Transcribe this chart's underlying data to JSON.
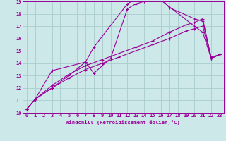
{
  "xlabel": "Windchill (Refroidissement éolien,°C)",
  "xlim": [
    -0.5,
    23.5
  ],
  "ylim": [
    10,
    19
  ],
  "yticks": [
    10,
    11,
    12,
    13,
    14,
    15,
    16,
    17,
    18,
    19
  ],
  "xticks": [
    0,
    1,
    2,
    3,
    4,
    5,
    6,
    7,
    8,
    9,
    10,
    11,
    12,
    13,
    14,
    15,
    16,
    17,
    18,
    19,
    20,
    21,
    22,
    23
  ],
  "bg_color": "#cce8e8",
  "grid_color": "#aacccc",
  "line_color": "#990099",
  "lines": [
    {
      "x": [
        0,
        1,
        3,
        7,
        8,
        12,
        13,
        14,
        15,
        16,
        17,
        20,
        21,
        22,
        23
      ],
      "y": [
        10.3,
        11.1,
        13.4,
        14.1,
        15.3,
        18.8,
        19.2,
        19.2,
        19.2,
        19.3,
        18.5,
        17.6,
        17.4,
        14.5,
        14.7
      ]
    },
    {
      "x": [
        0,
        1,
        3,
        5,
        7,
        8,
        10,
        12,
        13,
        14,
        15,
        16,
        20,
        21,
        22,
        23
      ],
      "y": [
        10.3,
        11.1,
        12.0,
        13.0,
        14.1,
        13.2,
        14.4,
        18.4,
        18.8,
        19.0,
        19.1,
        19.1,
        17.0,
        16.5,
        14.4,
        14.7
      ]
    },
    {
      "x": [
        0,
        1,
        3,
        5,
        7,
        9,
        11,
        13,
        15,
        17,
        19,
        20,
        21,
        22,
        23
      ],
      "y": [
        10.3,
        11.1,
        12.2,
        13.1,
        13.8,
        14.3,
        14.8,
        15.3,
        15.8,
        16.5,
        17.1,
        17.3,
        17.6,
        14.4,
        14.7
      ]
    },
    {
      "x": [
        0,
        1,
        3,
        5,
        7,
        9,
        11,
        13,
        15,
        17,
        19,
        20,
        21,
        22,
        23
      ],
      "y": [
        10.3,
        11.1,
        12.0,
        12.8,
        13.5,
        14.0,
        14.5,
        15.0,
        15.5,
        16.0,
        16.6,
        16.8,
        17.0,
        14.4,
        14.7
      ]
    }
  ]
}
